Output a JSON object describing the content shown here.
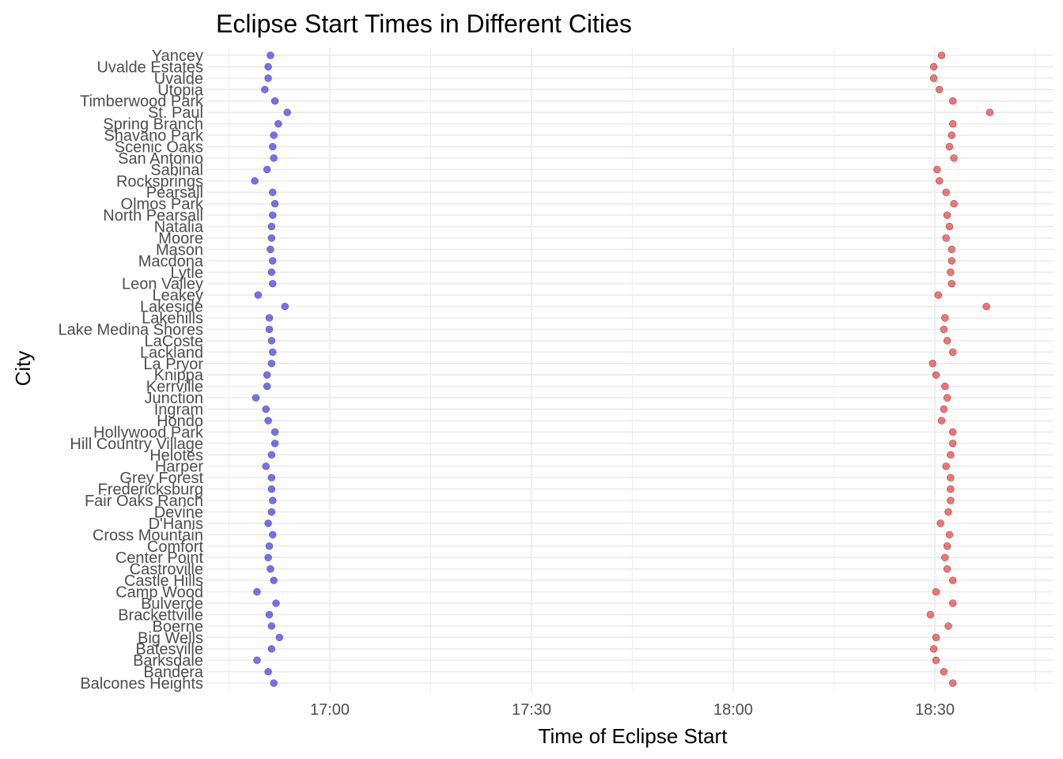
{
  "chart_data": {
    "type": "scatter",
    "title": "Eclipse Start Times in Different Cities",
    "xlabel": "Time of Eclipse Start",
    "ylabel": "City",
    "x_ticks": [
      "17:00",
      "17:30",
      "18:00",
      "18:30"
    ],
    "xlim": [
      "16:52",
      "18:44"
    ],
    "grid": true,
    "legend": "none",
    "colors": {
      "start": "#0000ff",
      "end": "#ff0000",
      "point_outline": "#333333",
      "grid": "#ebebeb"
    },
    "categories": [
      "Yancey",
      "Uvalde Estates",
      "Uvalde",
      "Utopia",
      "Timberwood Park",
      "St. Paul",
      "Spring Branch",
      "Shavano Park",
      "Scenic Oaks",
      "San Antonio",
      "Sabinal",
      "Rocksprings",
      "Pearsall",
      "Olmos Park",
      "North Pearsall",
      "Natalia",
      "Moore",
      "Mason",
      "Macdona",
      "Lytle",
      "Leon Valley",
      "Leakey",
      "Lakeside",
      "Lakehills",
      "Lake Medina Shores",
      "LaCoste",
      "Lackland",
      "La Pryor",
      "Knippa",
      "Kerrville",
      "Junction",
      "Ingram",
      "Hondo",
      "Hollywood Park",
      "Hill Country Village",
      "Helotes",
      "Harper",
      "Grey Forest",
      "Fredericksburg",
      "Fair Oaks Ranch",
      "Devine",
      "D'Hanis",
      "Cross Mountain",
      "Comfort",
      "Center Point",
      "Castroville",
      "Castle Hills",
      "Camp Wood",
      "Bulverde",
      "Brackettville",
      "Boerne",
      "Big Wells",
      "Batesville",
      "Barksdale",
      "Bandera",
      "Balcones Heights"
    ],
    "series": [
      {
        "values": [
          "16:51:10",
          "16:50:50",
          "16:50:50",
          "16:50:20",
          "16:51:50",
          "16:53:40",
          "16:52:20",
          "16:51:40",
          "16:51:30",
          "16:51:40",
          "16:50:40",
          "16:48:50",
          "16:51:30",
          "16:51:50",
          "16:51:30",
          "16:51:20",
          "16:51:20",
          "16:51:10",
          "16:51:30",
          "16:51:20",
          "16:51:30",
          "16:49:20",
          "16:53:20",
          "16:51:00",
          "16:51:00",
          "16:51:20",
          "16:51:30",
          "16:51:20",
          "16:50:40",
          "16:50:40",
          "16:49:00",
          "16:50:30",
          "16:50:50",
          "16:51:50",
          "16:51:50",
          "16:51:20",
          "16:50:30",
          "16:51:20",
          "16:51:20",
          "16:51:30",
          "16:51:20",
          "16:50:50",
          "16:51:30",
          "16:51:00",
          "16:50:50",
          "16:51:10",
          "16:51:40",
          "16:49:10",
          "16:52:00",
          "16:51:00",
          "16:51:20",
          "16:52:30",
          "16:51:20",
          "16:49:10",
          "16:50:50",
          "16:51:40"
        ]
      },
      {
        "values": [
          "18:31:00",
          "18:29:50",
          "18:29:50",
          "18:30:40",
          "18:32:40",
          "18:38:10",
          "18:32:40",
          "18:32:30",
          "18:32:10",
          "18:32:50",
          "18:30:20",
          "18:30:40",
          "18:31:40",
          "18:32:50",
          "18:31:50",
          "18:32:10",
          "18:31:40",
          "18:32:30",
          "18:32:30",
          "18:32:20",
          "18:32:30",
          "18:30:30",
          "18:37:40",
          "18:31:30",
          "18:31:20",
          "18:31:50",
          "18:32:40",
          "18:29:40",
          "18:30:10",
          "18:31:30",
          "18:31:50",
          "18:31:20",
          "18:31:00",
          "18:32:40",
          "18:32:40",
          "18:32:20",
          "18:31:40",
          "18:32:20",
          "18:32:20",
          "18:32:20",
          "18:32:00",
          "18:30:50",
          "18:32:10",
          "18:31:50",
          "18:31:30",
          "18:31:50",
          "18:32:40",
          "18:30:10",
          "18:32:40",
          "18:29:20",
          "18:32:00",
          "18:30:10",
          "18:29:50",
          "18:30:10",
          "18:31:20",
          "18:32:40"
        ]
      }
    ]
  }
}
